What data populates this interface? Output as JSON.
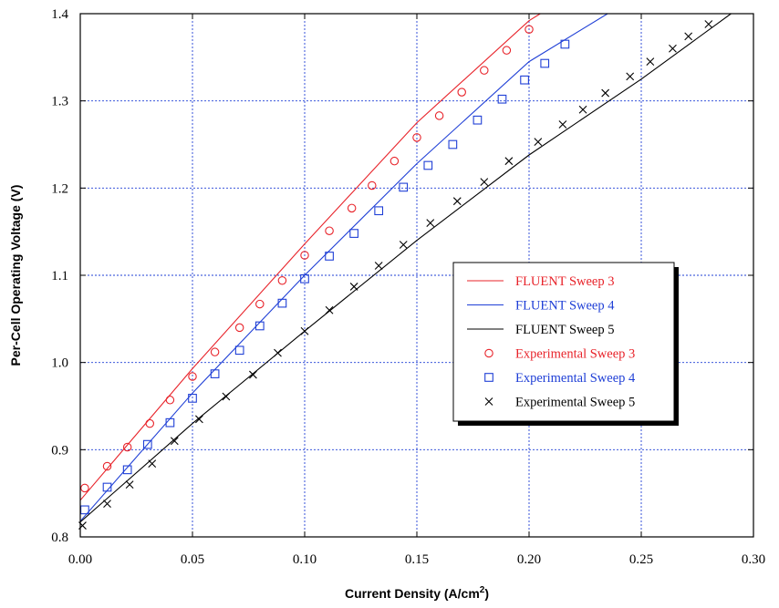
{
  "chart_data": {
    "type": "line",
    "xlabel": "Current Density (A/cm",
    "xlabel_sup": "2",
    "xlabel_end": ")",
    "ylabel": "Per-Cell Operating Voltage (V)",
    "xlim": [
      0,
      0.3
    ],
    "ylim": [
      0.8,
      1.4
    ],
    "x_ticks": [
      "0.00",
      "0.05",
      "0.10",
      "0.15",
      "0.20",
      "0.25",
      "0.30"
    ],
    "y_ticks": [
      "0.8",
      "0.9",
      "1.0",
      "1.1",
      "1.2",
      "1.3",
      "1.4"
    ],
    "grid": true,
    "legend_position": "center-right",
    "series": [
      {
        "name": "FLUENT Sweep 3",
        "kind": "line",
        "color": "#e8232a",
        "points": [
          [
            0,
            0.842
          ],
          [
            0.05,
            0.993
          ],
          [
            0.1,
            1.136
          ],
          [
            0.15,
            1.275
          ],
          [
            0.2,
            1.392
          ],
          [
            0.205,
            1.4
          ]
        ]
      },
      {
        "name": "FLUENT Sweep 4",
        "kind": "line",
        "color": "#1f3fd6",
        "points": [
          [
            0,
            0.818
          ],
          [
            0.05,
            0.965
          ],
          [
            0.1,
            1.1
          ],
          [
            0.15,
            1.228
          ],
          [
            0.2,
            1.345
          ],
          [
            0.235,
            1.4
          ]
        ]
      },
      {
        "name": "FLUENT Sweep 5",
        "kind": "line",
        "color": "#000000",
        "points": [
          [
            0,
            0.817
          ],
          [
            0.05,
            0.93
          ],
          [
            0.1,
            1.036
          ],
          [
            0.15,
            1.14
          ],
          [
            0.2,
            1.238
          ],
          [
            0.25,
            1.325
          ],
          [
            0.29,
            1.4
          ]
        ]
      },
      {
        "name": "Experimental Sweep 3",
        "kind": "scatter",
        "marker": "circle",
        "color": "#e8232a",
        "points": [
          [
            0.002,
            0.856
          ],
          [
            0.012,
            0.881
          ],
          [
            0.021,
            0.903
          ],
          [
            0.031,
            0.93
          ],
          [
            0.04,
            0.957
          ],
          [
            0.05,
            0.984
          ],
          [
            0.06,
            1.012
          ],
          [
            0.071,
            1.04
          ],
          [
            0.08,
            1.067
          ],
          [
            0.09,
            1.094
          ],
          [
            0.1,
            1.123
          ],
          [
            0.111,
            1.151
          ],
          [
            0.121,
            1.177
          ],
          [
            0.13,
            1.203
          ],
          [
            0.14,
            1.231
          ],
          [
            0.15,
            1.258
          ],
          [
            0.16,
            1.283
          ],
          [
            0.17,
            1.31
          ],
          [
            0.18,
            1.335
          ],
          [
            0.19,
            1.358
          ],
          [
            0.2,
            1.382
          ]
        ]
      },
      {
        "name": "Experimental Sweep 4",
        "kind": "scatter",
        "marker": "square",
        "color": "#1f3fd6",
        "points": [
          [
            0.002,
            0.831
          ],
          [
            0.012,
            0.857
          ],
          [
            0.021,
            0.877
          ],
          [
            0.03,
            0.906
          ],
          [
            0.04,
            0.931
          ],
          [
            0.05,
            0.959
          ],
          [
            0.06,
            0.987
          ],
          [
            0.071,
            1.014
          ],
          [
            0.08,
            1.042
          ],
          [
            0.09,
            1.068
          ],
          [
            0.1,
            1.096
          ],
          [
            0.111,
            1.122
          ],
          [
            0.122,
            1.148
          ],
          [
            0.133,
            1.174
          ],
          [
            0.144,
            1.201
          ],
          [
            0.155,
            1.226
          ],
          [
            0.166,
            1.25
          ],
          [
            0.177,
            1.278
          ],
          [
            0.188,
            1.302
          ],
          [
            0.198,
            1.324
          ],
          [
            0.207,
            1.343
          ],
          [
            0.216,
            1.365
          ]
        ]
      },
      {
        "name": "Experimental Sweep 5",
        "kind": "scatter",
        "marker": "cross",
        "color": "#000000",
        "points": [
          [
            0.001,
            0.813
          ],
          [
            0.012,
            0.838
          ],
          [
            0.022,
            0.86
          ],
          [
            0.032,
            0.884
          ],
          [
            0.042,
            0.91
          ],
          [
            0.053,
            0.935
          ],
          [
            0.065,
            0.961
          ],
          [
            0.077,
            0.986
          ],
          [
            0.088,
            1.011
          ],
          [
            0.1,
            1.036
          ],
          [
            0.111,
            1.06
          ],
          [
            0.122,
            1.087
          ],
          [
            0.133,
            1.111
          ],
          [
            0.144,
            1.135
          ],
          [
            0.156,
            1.16
          ],
          [
            0.168,
            1.185
          ],
          [
            0.18,
            1.207
          ],
          [
            0.191,
            1.231
          ],
          [
            0.204,
            1.253
          ],
          [
            0.215,
            1.273
          ],
          [
            0.224,
            1.29
          ],
          [
            0.234,
            1.309
          ],
          [
            0.245,
            1.328
          ],
          [
            0.254,
            1.345
          ],
          [
            0.264,
            1.36
          ],
          [
            0.271,
            1.374
          ],
          [
            0.28,
            1.388
          ]
        ]
      }
    ]
  }
}
